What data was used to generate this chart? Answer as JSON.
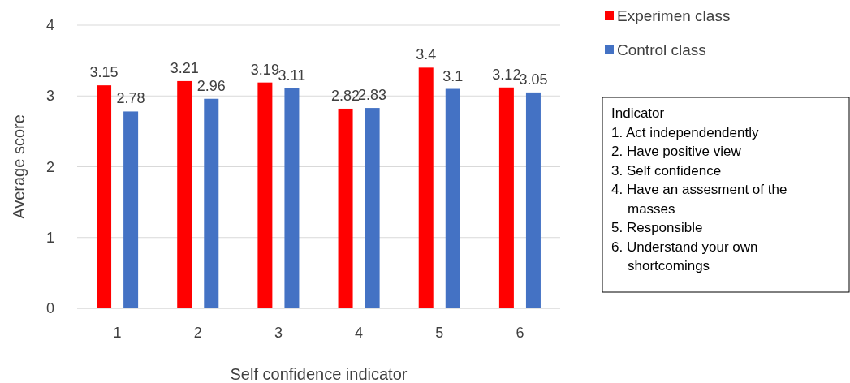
{
  "chart_data": {
    "type": "bar",
    "xlabel": "Self confidence indicator",
    "ylabel": "Average score",
    "categories": [
      "1",
      "2",
      "3",
      "4",
      "5",
      "6"
    ],
    "series": [
      {
        "name": "Experimen class",
        "color": "#ff0000",
        "values": [
          3.15,
          3.21,
          3.19,
          2.82,
          3.4,
          3.12
        ]
      },
      {
        "name": "Control class",
        "color": "#4472c4",
        "values": [
          2.78,
          2.96,
          3.11,
          2.83,
          3.1,
          3.05
        ]
      }
    ],
    "ylim": [
      0,
      4
    ],
    "yticks": [
      0,
      1,
      2,
      3,
      4
    ],
    "grid": "y",
    "legend": "top right",
    "data_labels": true,
    "annotations": [
      "Indicator",
      "1. Act independendently",
      "2. Have positive view",
      "3. Self confidence",
      "4. Have an assesment of the masses",
      "5. Responsible",
      "6. Understand your own shortcomings"
    ]
  }
}
